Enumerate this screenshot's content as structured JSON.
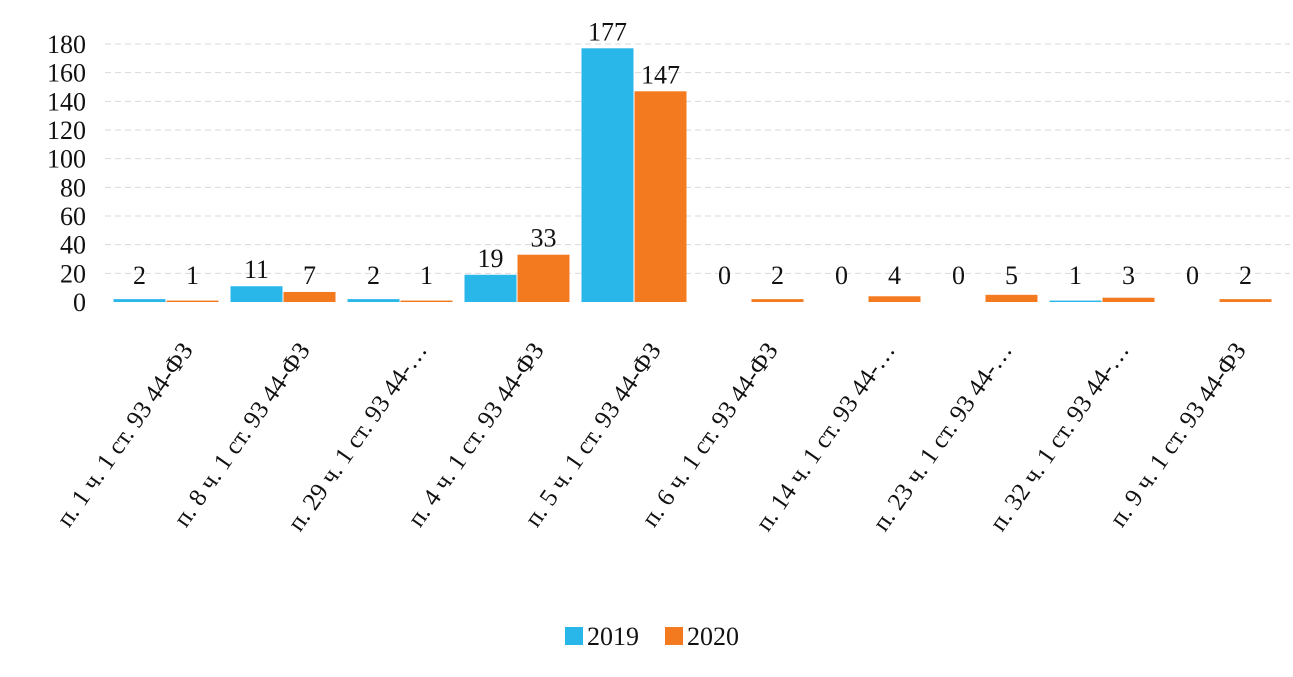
{
  "chart_data": {
    "type": "bar",
    "categories": [
      "п. 1 ч. 1 ст. 93 44-ФЗ",
      "п. 8 ч. 1 ст. 93 44-ФЗ",
      "п. 29 ч. 1 ст. 93 44-…",
      "п. 4 ч. 1 ст. 93 44-ФЗ",
      "п. 5 ч. 1 ст. 93 44-ФЗ",
      "п. 6 ч. 1 ст. 93 44-ФЗ",
      "п. 14 ч. 1 ст. 93 44-…",
      "п. 23 ч. 1 ст. 93 44-…",
      "п. 32 ч. 1 ст. 93 44-…",
      "п. 9 ч. 1 ст. 93 44-ФЗ"
    ],
    "series": [
      {
        "name": "2019",
        "color": "#29b6e8",
        "values": [
          2,
          11,
          2,
          19,
          177,
          0,
          0,
          0,
          1,
          0
        ]
      },
      {
        "name": "2020",
        "color": "#f47a20",
        "values": [
          1,
          7,
          1,
          33,
          147,
          2,
          4,
          5,
          3,
          2
        ]
      }
    ],
    "yticks": [
      0,
      20,
      40,
      60,
      80,
      100,
      120,
      140,
      160,
      180
    ],
    "ylim": [
      0,
      180
    ],
    "grid": true,
    "legend_position": "bottom"
  }
}
